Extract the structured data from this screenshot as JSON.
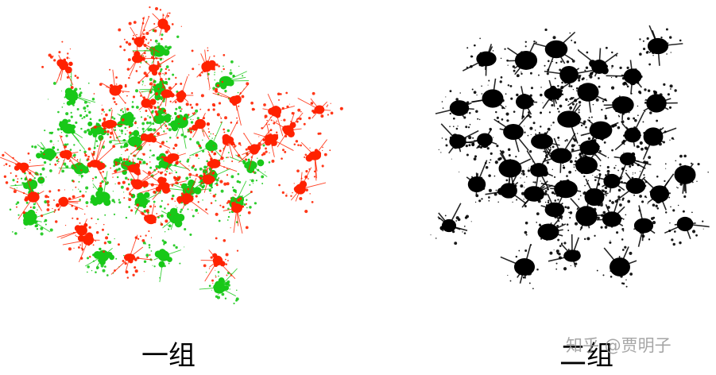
{
  "panels": [
    {
      "name": "group-one",
      "caption": "一组",
      "colors": {
        "red": "#ff2200",
        "green": "#18c818"
      }
    },
    {
      "name": "group-two",
      "caption": "二组",
      "colors": {
        "black": "#000000"
      }
    }
  ],
  "watermark": "知乎 @贾明子"
}
